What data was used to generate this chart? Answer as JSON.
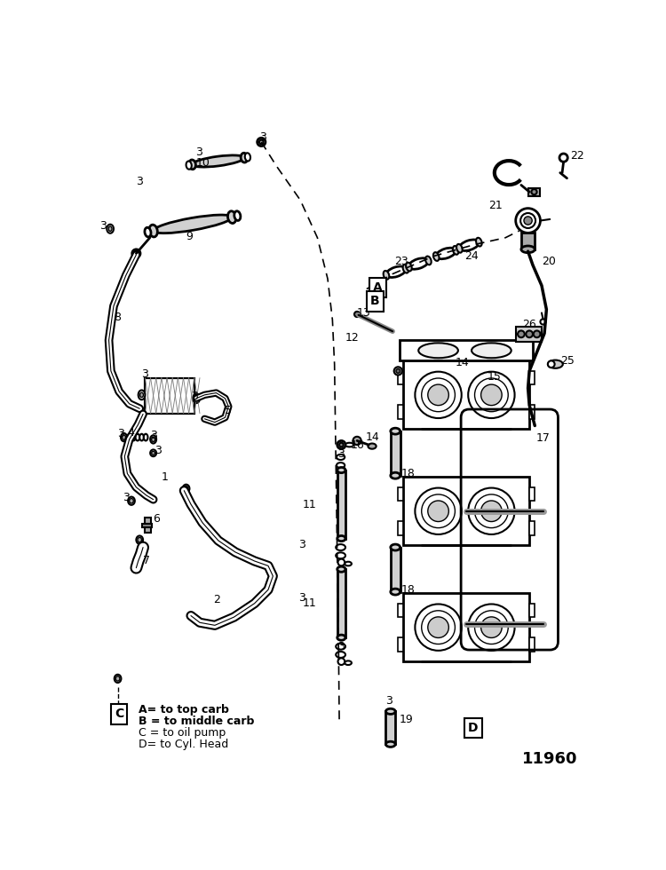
{
  "background_color": "#ffffff",
  "part_number": "11960",
  "legend_items": [
    "A= to top carb",
    "B = to middle carb",
    "C = to oil pump",
    "D= to Cyl. Head"
  ]
}
